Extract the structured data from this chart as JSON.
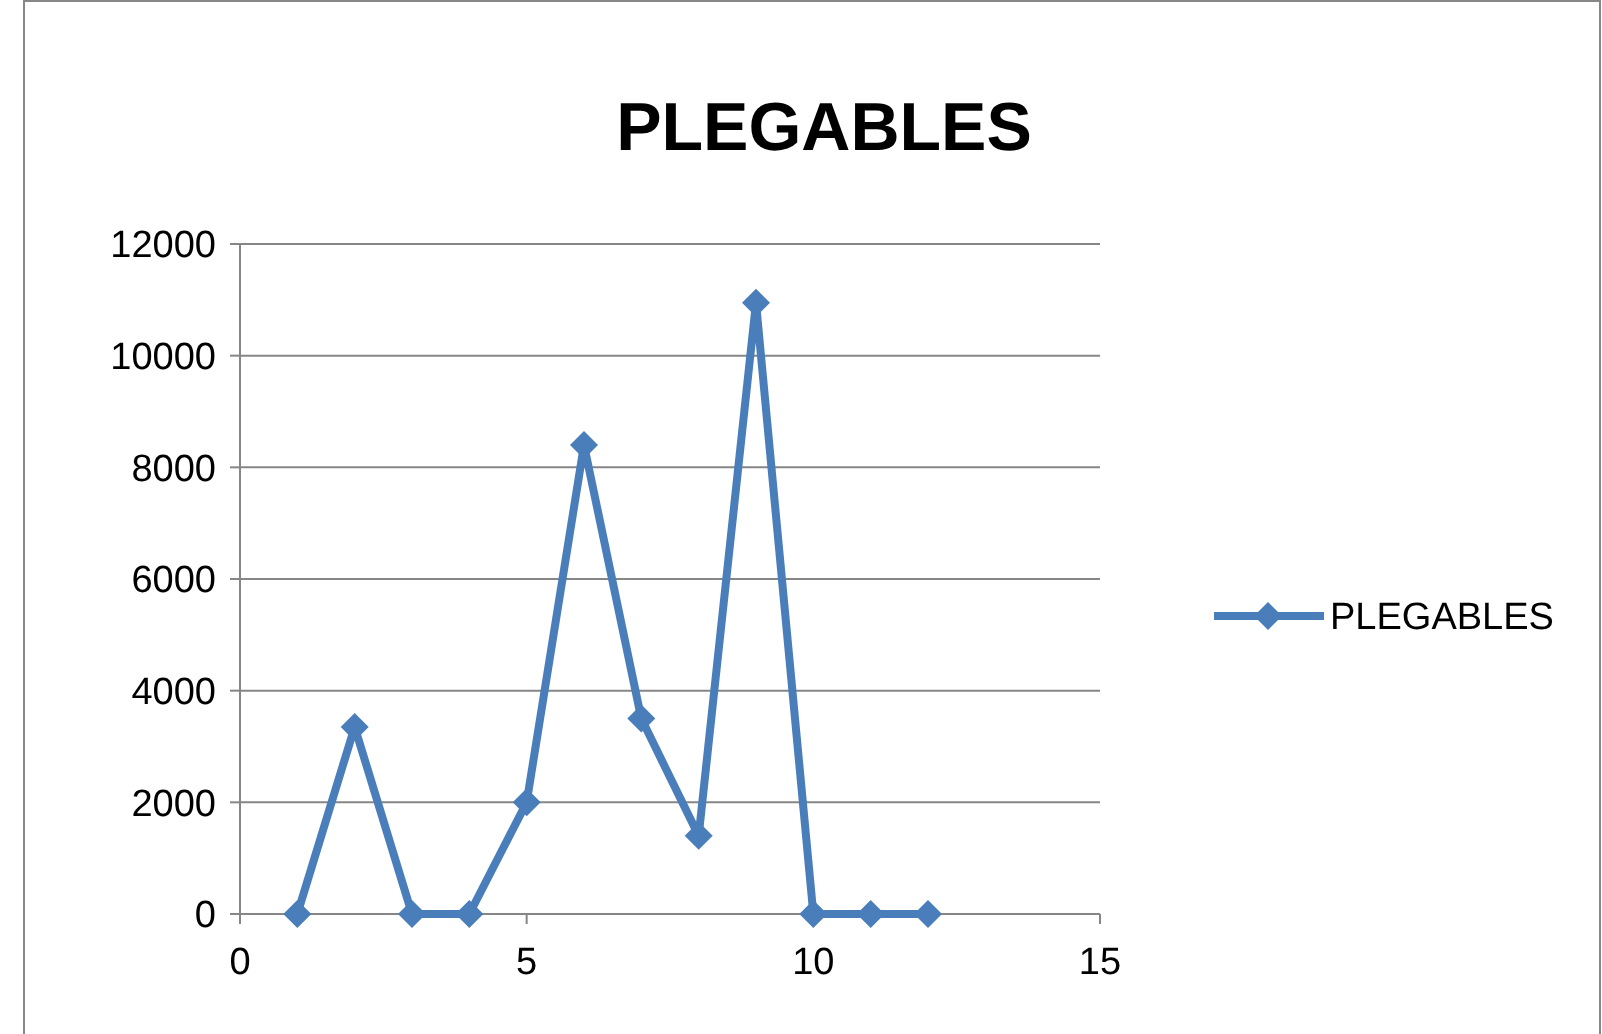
{
  "chart_data": {
    "type": "line",
    "title": "PLEGABLES",
    "x": [
      1,
      2,
      3,
      4,
      5,
      6,
      7,
      8,
      9,
      10,
      11,
      12
    ],
    "series": [
      {
        "name": "PLEGABLES",
        "color": "#4a7ebb",
        "values": [
          0,
          3350,
          0,
          0,
          2000,
          8400,
          3500,
          1400,
          10950,
          0,
          0,
          0
        ]
      }
    ],
    "xlim": [
      0,
      15
    ],
    "xticks": [
      0,
      5,
      10,
      15
    ],
    "ylim": [
      0,
      12000
    ],
    "yticks": [
      0,
      2000,
      4000,
      6000,
      8000,
      10000,
      12000
    ],
    "grid": "y",
    "legend": "right",
    "marker": "diamond",
    "line_style": "solid"
  }
}
